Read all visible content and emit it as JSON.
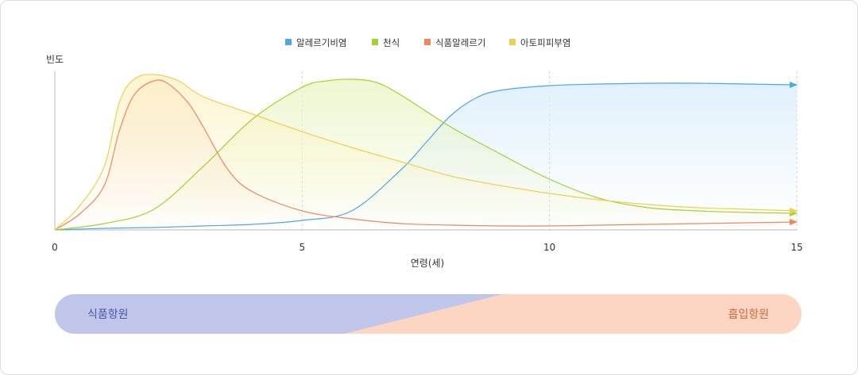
{
  "chart_data": {
    "type": "line",
    "ylabel": "빈도",
    "xlabel": "연령(세)",
    "xlim": [
      0,
      15
    ],
    "ylim": [
      0,
      100
    ],
    "x_ticks": [
      "0",
      "5",
      "10",
      "15"
    ],
    "grid": "vertical dashed at 5, 10, 15",
    "legend_position": "top-center",
    "series": [
      {
        "name": "알레르기비염",
        "color": "#4aa8e8",
        "fill": "#dbeefb",
        "x": [
          0,
          1,
          2,
          3,
          4,
          5,
          6,
          7,
          7.5,
          8,
          8.5,
          9,
          10,
          11,
          12,
          13,
          14,
          15
        ],
        "y": [
          0,
          1,
          1.5,
          2.5,
          3.5,
          6,
          12,
          38,
          55,
          72,
          83,
          88,
          91,
          92,
          92.5,
          92.5,
          92,
          91.5
        ]
      },
      {
        "name": "천식",
        "color": "#a3d12e",
        "fill": "#eaf5c8",
        "x": [
          0,
          1,
          2,
          3,
          4,
          5,
          5.5,
          6,
          6.5,
          7,
          8,
          9,
          10,
          11,
          12,
          13,
          14,
          15
        ],
        "y": [
          0,
          4,
          13,
          40,
          70,
          90,
          94,
          95,
          93,
          85,
          65,
          48,
          32,
          20,
          14,
          12,
          11,
          10.5
        ]
      },
      {
        "name": "식품알레르기",
        "color": "#f2855a",
        "fill": "#fbe0d0",
        "x": [
          0,
          0.5,
          1,
          1.3,
          1.6,
          2,
          2.3,
          2.7,
          3,
          3.5,
          4,
          5,
          6,
          7,
          8,
          9,
          10,
          11,
          12,
          13,
          14,
          15
        ],
        "y": [
          0,
          10,
          28,
          62,
          85,
          94,
          92,
          80,
          65,
          38,
          24,
          12,
          7,
          4,
          3,
          2.5,
          2.5,
          3,
          3.5,
          4,
          4.5,
          5
        ]
      },
      {
        "name": "아토피피부염",
        "color": "#f2cf4a",
        "fill": "#fcf3c8",
        "x": [
          0,
          0.5,
          1,
          1.3,
          1.6,
          2,
          2.5,
          3,
          4,
          5,
          6,
          7,
          8,
          9,
          10,
          11,
          12,
          13,
          14,
          15
        ],
        "y": [
          0,
          15,
          40,
          80,
          95,
          98,
          94,
          84,
          73,
          62,
          52,
          43,
          34,
          28,
          23,
          19,
          16,
          14,
          13,
          12
        ]
      }
    ]
  },
  "bands": {
    "left_label": "식품항원",
    "right_label": "흡입항원",
    "left_color": "#bfc6ea",
    "right_color": "#fdd5c3",
    "left_text_color": "#4a56a8",
    "right_text_color": "#d06a3a"
  }
}
